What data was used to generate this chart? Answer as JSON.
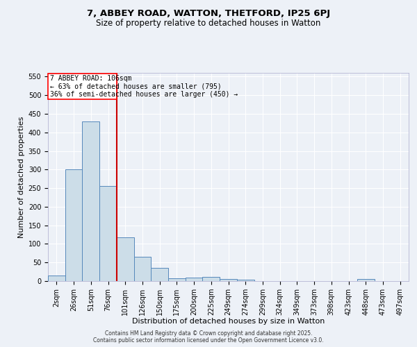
{
  "title1": "7, ABBEY ROAD, WATTON, THETFORD, IP25 6PJ",
  "title2": "Size of property relative to detached houses in Watton",
  "xlabel": "Distribution of detached houses by size in Watton",
  "ylabel": "Number of detached properties",
  "bar_labels": [
    "2sqm",
    "26sqm",
    "51sqm",
    "76sqm",
    "101sqm",
    "126sqm",
    "150sqm",
    "175sqm",
    "200sqm",
    "225sqm",
    "249sqm",
    "274sqm",
    "299sqm",
    "324sqm",
    "349sqm",
    "373sqm",
    "398sqm",
    "423sqm",
    "448sqm",
    "473sqm",
    "497sqm"
  ],
  "bar_values": [
    15,
    300,
    430,
    255,
    118,
    65,
    35,
    8,
    10,
    12,
    5,
    3,
    0,
    0,
    0,
    0,
    0,
    0,
    5,
    0,
    0
  ],
  "bar_color": "#ccdde8",
  "bar_edge_color": "#5588bb",
  "vline_color": "#cc0000",
  "vline_x": 3.5,
  "annotation_line1": "7 ABBEY ROAD: 106sqm",
  "annotation_line2": "← 63% of detached houses are smaller (795)",
  "annotation_line3": "36% of semi-detached houses are larger (450) →",
  "annotation_box_fc": "white",
  "annotation_box_ec": "red",
  "ylim": [
    0,
    560
  ],
  "yticks": [
    0,
    50,
    100,
    150,
    200,
    250,
    300,
    350,
    400,
    450,
    500,
    550
  ],
  "bg_color": "#edf1f7",
  "grid_color": "#ffffff",
  "title1_fontsize": 9.5,
  "title2_fontsize": 8.5,
  "xlabel_fontsize": 8,
  "ylabel_fontsize": 8,
  "tick_fontsize": 7,
  "footer1": "Contains HM Land Registry data © Crown copyright and database right 2025.",
  "footer2": "Contains public sector information licensed under the Open Government Licence v3.0."
}
